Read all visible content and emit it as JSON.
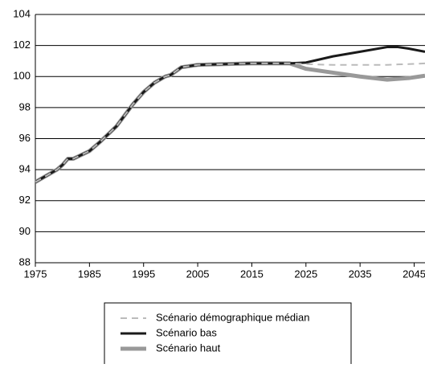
{
  "chart_data": {
    "type": "line",
    "x": [
      1975,
      1977,
      1979,
      1980,
      1981,
      1982,
      1985,
      1987,
      1990,
      1993,
      1995,
      1997,
      1999,
      2000,
      2002,
      2005,
      2010,
      2015,
      2020,
      2022,
      2025,
      2030,
      2035,
      2040,
      2042,
      2044,
      2047
    ],
    "series": [
      {
        "name": "Scénario haut",
        "color": "#999999",
        "style": "solid",
        "width": 5,
        "values": [
          93.2,
          93.6,
          94.0,
          94.3,
          94.7,
          94.7,
          95.2,
          95.8,
          96.8,
          98.2,
          99.0,
          99.6,
          100.0,
          100.1,
          100.6,
          100.75,
          100.8,
          100.85,
          100.85,
          100.85,
          100.5,
          100.25,
          100.0,
          99.8,
          99.85,
          99.9,
          100.05
        ]
      },
      {
        "name": "Scénario bas",
        "color": "#1a1a1a",
        "style": "solid",
        "width": 3,
        "values": [
          93.2,
          93.6,
          94.0,
          94.3,
          94.7,
          94.7,
          95.2,
          95.8,
          96.8,
          98.2,
          99.0,
          99.6,
          100.0,
          100.1,
          100.6,
          100.75,
          100.8,
          100.85,
          100.85,
          100.85,
          100.9,
          101.3,
          101.6,
          101.9,
          101.9,
          101.8,
          101.6
        ]
      },
      {
        "name": "Scénario démographique médian",
        "color": "#bbbbbb",
        "style": "dashed",
        "width": 2,
        "values": [
          93.2,
          93.6,
          94.0,
          94.3,
          94.7,
          94.7,
          95.2,
          95.8,
          96.8,
          98.2,
          99.0,
          99.6,
          100.0,
          100.1,
          100.6,
          100.75,
          100.8,
          100.85,
          100.85,
          100.85,
          100.8,
          100.75,
          100.75,
          100.75,
          100.78,
          100.8,
          100.85
        ]
      }
    ],
    "legend_order": [
      2,
      1,
      0
    ],
    "xlim": [
      1975,
      2047
    ],
    "xticks": [
      1975,
      1985,
      1995,
      2005,
      2015,
      2025,
      2035,
      2045
    ],
    "ylim": [
      88,
      104
    ],
    "yticks": [
      88,
      90,
      92,
      94,
      96,
      98,
      100,
      102,
      104
    ],
    "grid": true
  }
}
